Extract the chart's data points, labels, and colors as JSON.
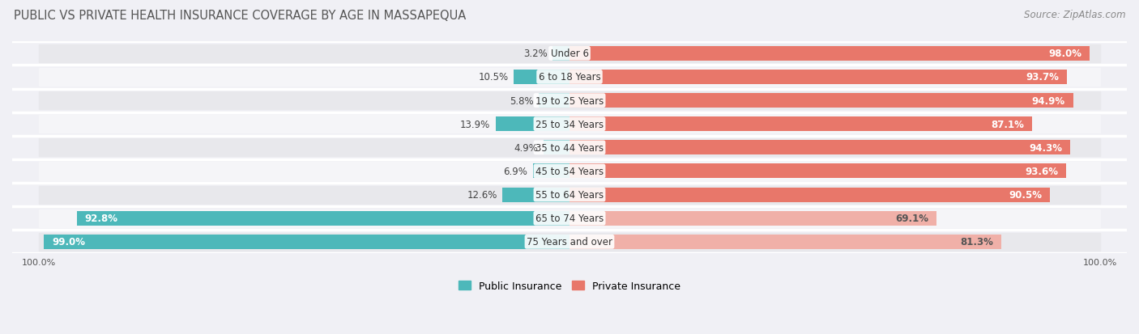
{
  "title": "PUBLIC VS PRIVATE HEALTH INSURANCE COVERAGE BY AGE IN MASSAPEQUA",
  "source": "Source: ZipAtlas.com",
  "categories": [
    "Under 6",
    "6 to 18 Years",
    "19 to 25 Years",
    "25 to 34 Years",
    "35 to 44 Years",
    "45 to 54 Years",
    "55 to 64 Years",
    "65 to 74 Years",
    "75 Years and over"
  ],
  "public_values": [
    3.2,
    10.5,
    5.8,
    13.9,
    4.9,
    6.9,
    12.6,
    92.8,
    99.0
  ],
  "private_values": [
    98.0,
    93.7,
    94.9,
    87.1,
    94.3,
    93.6,
    90.5,
    69.1,
    81.3
  ],
  "public_color": "#4db8ba",
  "private_color": "#e8776a",
  "private_color_light": "#f0b0a8",
  "row_bg_color": "#e8e8ec",
  "row_alt_bg_color": "#f5f5f8",
  "outer_bg_color": "#f0f0f5",
  "bar_height": 0.62,
  "title_fontsize": 10.5,
  "source_fontsize": 8.5,
  "label_fontsize": 8.5,
  "value_fontsize": 8.5,
  "legend_fontsize": 9,
  "xlim": 105,
  "max_val": 100
}
